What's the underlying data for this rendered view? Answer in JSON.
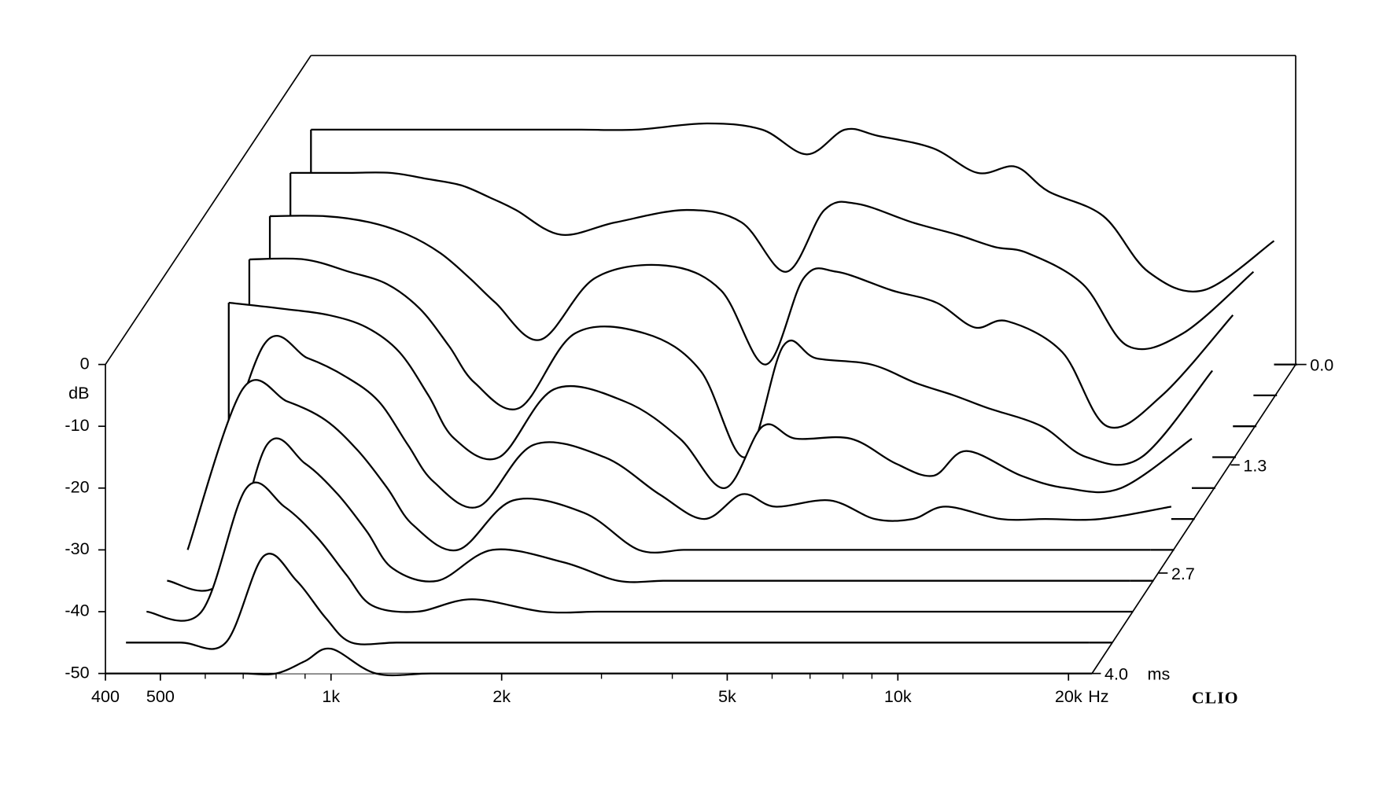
{
  "chart_data": {
    "type": "waterfall",
    "y_label": "dB",
    "x_unit": "Hz",
    "z_unit": "ms",
    "brand": "CLIO",
    "x_scale": "log",
    "color": "#000000",
    "x": [
      400,
      500,
      600,
      700,
      800,
      900,
      1000,
      1200,
      1500,
      2000,
      2500,
      3000,
      3500,
      4000,
      5000,
      6000,
      7000,
      8000,
      10000,
      12000,
      15000,
      20000
    ],
    "xlim": [
      400,
      22000
    ],
    "xticks": [
      400,
      500,
      {
        "value": 1000,
        "label": "1k"
      },
      {
        "value": 2000,
        "label": "2k"
      },
      {
        "value": 5000,
        "label": "5k"
      },
      {
        "value": 10000,
        "label": "10k"
      },
      {
        "value": 20000,
        "label": "20k"
      }
    ],
    "xminor": [
      600,
      700,
      800,
      900,
      3000,
      4000,
      6000,
      7000,
      8000,
      9000
    ],
    "ylim": [
      -50,
      0
    ],
    "yticks": [
      0,
      -10,
      -20,
      -30,
      -40,
      -50
    ],
    "zlim": [
      0,
      4
    ],
    "zticks": [
      {
        "value": 0,
        "label": "0.0"
      },
      1.3,
      2.7,
      {
        "value": 4,
        "label": "4.0"
      }
    ],
    "slices": [
      {
        "t": 0,
        "values": [
          -12,
          -12,
          -12,
          -12,
          -12,
          -12,
          -12,
          -12,
          -12,
          -11,
          -12,
          -16,
          -12,
          -13,
          -15,
          -19,
          -18,
          -22,
          -26,
          -35,
          -38,
          -30
        ]
      },
      {
        "t": 0.4,
        "values": [
          -14,
          -14,
          -14,
          -15,
          -16,
          -18,
          -20,
          -24,
          -22,
          -20,
          -22,
          -30,
          -20,
          -19,
          -22,
          -24,
          -26,
          -27,
          -32,
          -42,
          -40,
          -30
        ]
      },
      {
        "t": 0.8,
        "values": [
          -16,
          -16,
          -17,
          -19,
          -22,
          -26,
          -30,
          -36,
          -26,
          -24,
          -28,
          -40,
          -26,
          -25,
          -28,
          -30,
          -34,
          -33,
          -38,
          -50,
          -45,
          -32
        ]
      },
      {
        "t": 1.2,
        "values": [
          -18,
          -18,
          -20,
          -22,
          -26,
          -32,
          -38,
          -42,
          -30,
          -30,
          -36,
          -50,
          -32,
          -34,
          -35,
          -38,
          -40,
          -42,
          -45,
          -50,
          -50,
          -36
        ]
      },
      {
        "t": 1.6,
        "values": [
          -20,
          -21,
          -22,
          -24,
          -28,
          -35,
          -42,
          -45,
          -34,
          -36,
          -42,
          -50,
          -40,
          -42,
          -42,
          -46,
          -48,
          -44,
          -48,
          -50,
          -50,
          -42
        ]
      },
      {
        "t": 2.0,
        "values": [
          -50,
          -22,
          -24,
          -27,
          -31,
          -38,
          -44,
          -48,
          -38,
          -40,
          -46,
          -50,
          -46,
          -48,
          -47,
          -50,
          -50,
          -48,
          -50,
          -50,
          -50,
          -48
        ]
      },
      {
        "t": 2.4,
        "values": [
          -50,
          -24,
          -26,
          -29,
          -34,
          -40,
          -46,
          -50,
          -42,
          -44,
          -50,
          -50,
          -50,
          -50,
          -50,
          -50,
          -50,
          -50,
          -50,
          -50,
          -50,
          -50
        ]
      },
      {
        "t": 2.8,
        "values": [
          -50,
          -50,
          -28,
          -31,
          -36,
          -42,
          -48,
          -50,
          -45,
          -47,
          -50,
          -50,
          -50,
          -50,
          -50,
          -50,
          -50,
          -50,
          -50,
          -50,
          -50,
          -50
        ]
      },
      {
        "t": 3.2,
        "values": [
          -50,
          -50,
          -30,
          -33,
          -38,
          -44,
          -49,
          -50,
          -48,
          -50,
          -50,
          -50,
          -50,
          -50,
          -50,
          -50,
          -50,
          -50,
          -50,
          -50,
          -50,
          -50
        ]
      },
      {
        "t": 3.6,
        "values": [
          -50,
          -50,
          -50,
          -36,
          -40,
          -46,
          -50,
          -50,
          -50,
          -50,
          -50,
          -50,
          -50,
          -50,
          -50,
          -50,
          -50,
          -50,
          -50,
          -50,
          -50,
          -50
        ]
      },
      {
        "t": 4.0,
        "values": [
          -50,
          -50,
          -50,
          -50,
          -50,
          -48,
          -46,
          -50,
          -50,
          -50,
          -50,
          -50,
          -50,
          -50,
          -50,
          -50,
          -50,
          -50,
          -50,
          -50,
          -50,
          -50
        ]
      }
    ]
  }
}
